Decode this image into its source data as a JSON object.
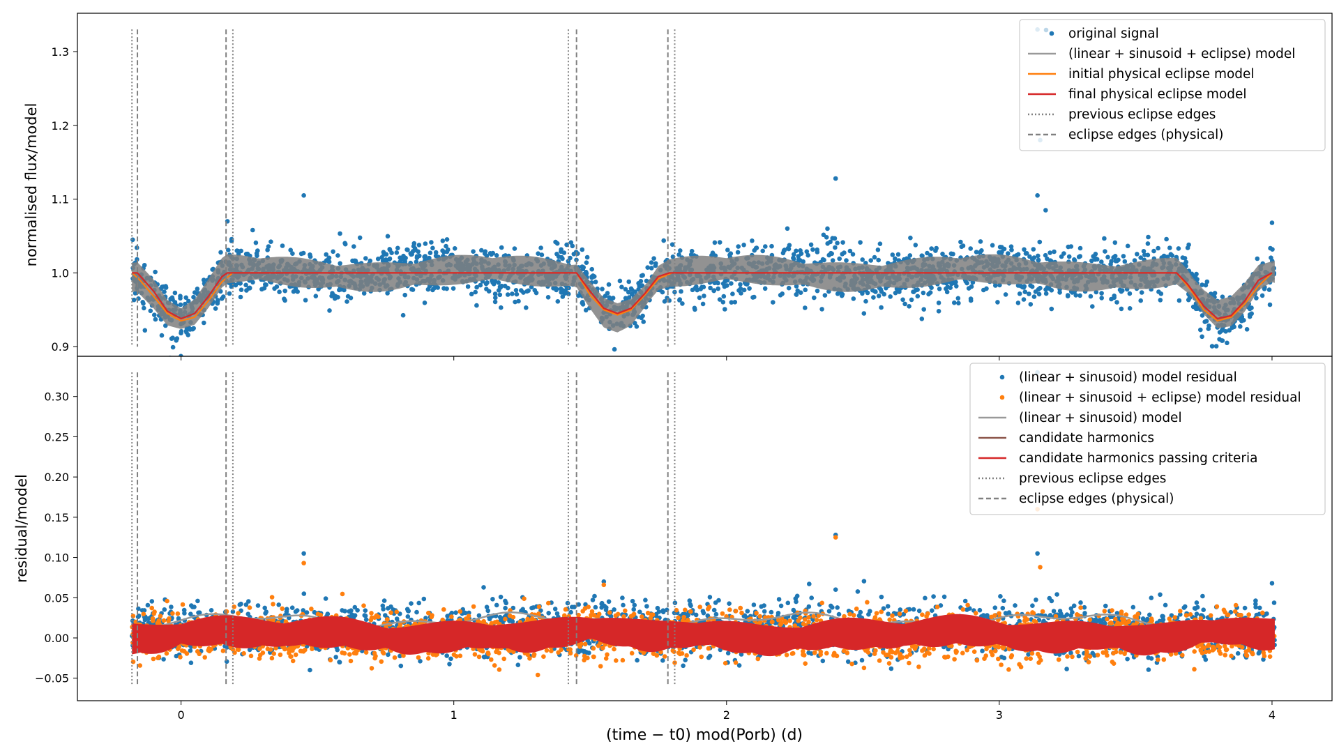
{
  "chart_data": [
    {
      "type": "scatter",
      "panel": "top",
      "ylabel": "normalised flux/model",
      "xlim": [
        -0.38,
        4.22
      ],
      "ylim": [
        0.887,
        1.352
      ],
      "x_ticks": [
        0,
        1,
        2,
        3,
        4
      ],
      "y_ticks": [
        0.9,
        1.0,
        1.1,
        1.2,
        1.3
      ],
      "y_tick_labels": [
        "0.9",
        "1.0",
        "1.1",
        "1.2",
        "1.3"
      ],
      "grid": false,
      "legend_placement": "top-right",
      "legend": [
        {
          "label": "original signal",
          "kind": "dot",
          "color": "#1f77b4"
        },
        {
          "label": "(linear + sinusoid + eclipse) model",
          "kind": "solid",
          "color": "#999999"
        },
        {
          "label": "initial physical eclipse model",
          "kind": "solid",
          "color": "#ff7f0e"
        },
        {
          "label": "final physical eclipse model",
          "kind": "solid",
          "color": "#d62728"
        },
        {
          "label": "previous eclipse edges",
          "kind": "dotted",
          "color": "#808080"
        },
        {
          "label": "eclipse edges (physical)",
          "kind": "dashed",
          "color": "#808080"
        }
      ],
      "vlines_previous": [
        -0.18,
        0.19,
        1.42,
        1.81
      ],
      "vlines_physical": [
        -0.16,
        0.165,
        1.45,
        1.785
      ],
      "final_model": {
        "x": [
          -0.18,
          -0.16,
          -0.1,
          -0.05,
          0.0,
          0.05,
          0.1,
          0.15,
          0.17,
          1.45,
          1.5,
          1.55,
          1.6,
          1.65,
          1.7,
          1.75,
          1.79,
          3.65,
          3.69,
          3.75,
          3.8,
          3.85,
          3.9,
          3.95,
          4.0
        ],
        "y": [
          1.0,
          1.0,
          0.975,
          0.948,
          0.938,
          0.945,
          0.968,
          0.995,
          1.0,
          1.0,
          0.975,
          0.952,
          0.945,
          0.952,
          0.972,
          0.995,
          1.0,
          1.0,
          0.985,
          0.955,
          0.938,
          0.942,
          0.962,
          0.99,
          1.0
        ]
      },
      "initial_model": {
        "x": [
          -0.18,
          -0.15,
          -0.1,
          -0.05,
          0.0,
          0.05,
          0.1,
          0.15,
          0.19,
          1.45,
          1.5,
          1.55,
          1.6,
          1.65,
          1.7,
          1.75,
          1.8,
          3.65,
          3.7,
          3.75,
          3.8,
          3.85,
          3.9,
          3.95,
          4.0
        ],
        "y": [
          1.0,
          0.99,
          0.968,
          0.945,
          0.935,
          0.94,
          0.962,
          0.988,
          1.0,
          1.0,
          0.97,
          0.95,
          0.943,
          0.95,
          0.97,
          0.992,
          1.0,
          1.0,
          0.978,
          0.95,
          0.935,
          0.94,
          0.958,
          0.982,
          1.0
        ]
      },
      "outliers": [
        {
          "x": 0.45,
          "y": 1.105
        },
        {
          "x": 2.4,
          "y": 1.128
        },
        {
          "x": 3.14,
          "y": 1.33
        },
        {
          "x": 3.15,
          "y": 1.18
        },
        {
          "x": 3.14,
          "y": 1.105
        },
        {
          "x": 3.17,
          "y": 1.085
        },
        {
          "x": 2.37,
          "y": 1.06
        },
        {
          "x": 4.0,
          "y": 1.068
        },
        {
          "x": 0.17,
          "y": 1.07
        }
      ],
      "scatter_note_noise_sd": 0.018
    },
    {
      "type": "scatter",
      "panel": "bottom",
      "xlabel": "(time − t0) mod(Porb) (d)",
      "ylabel": "residual/model",
      "xlim": [
        -0.38,
        4.22
      ],
      "ylim": [
        -0.078,
        0.35
      ],
      "x_ticks": [
        0,
        1,
        2,
        3,
        4
      ],
      "x_tick_labels": [
        "0",
        "1",
        "2",
        "3",
        "4"
      ],
      "y_ticks": [
        -0.05,
        0.0,
        0.05,
        0.1,
        0.15,
        0.2,
        0.25,
        0.3
      ],
      "y_tick_labels": [
        "−0.05",
        "0.00",
        "0.05",
        "0.10",
        "0.15",
        "0.20",
        "0.25",
        "0.30"
      ],
      "grid": false,
      "legend_placement": "top-right",
      "legend": [
        {
          "label": "(linear + sinusoid) model residual",
          "kind": "dot",
          "color": "#1f77b4"
        },
        {
          "label": "(linear + sinusoid + eclipse) model residual",
          "kind": "dot",
          "color": "#ff7f0e"
        },
        {
          "label": "(linear + sinusoid) model",
          "kind": "solid",
          "color": "#999999"
        },
        {
          "label": "candidate harmonics",
          "kind": "solid",
          "color": "#8c564b"
        },
        {
          "label": "candidate harmonics passing criteria",
          "kind": "solid",
          "color": "#d62728"
        },
        {
          "label": "previous eclipse edges",
          "kind": "dotted",
          "color": "#808080"
        },
        {
          "label": "eclipse edges (physical)",
          "kind": "dashed",
          "color": "#808080"
        }
      ],
      "vlines_previous": [
        -0.18,
        0.19,
        1.42,
        1.81
      ],
      "vlines_physical": [
        -0.16,
        0.165,
        1.45,
        1.785
      ],
      "outliers": [
        {
          "x": 0.45,
          "y": 0.105,
          "series": 0
        },
        {
          "x": 0.45,
          "y": 0.093,
          "series": 1
        },
        {
          "x": 2.4,
          "y": 0.128,
          "series": 0
        },
        {
          "x": 2.4,
          "y": 0.125,
          "series": 1
        },
        {
          "x": 3.14,
          "y": 0.33,
          "series": 0
        },
        {
          "x": 3.14,
          "y": 0.16,
          "series": 1
        },
        {
          "x": 3.14,
          "y": 0.105,
          "series": 0
        },
        {
          "x": 3.15,
          "y": 0.088,
          "series": 1
        },
        {
          "x": 1.55,
          "y": 0.07,
          "series": 0
        },
        {
          "x": 1.55,
          "y": 0.066,
          "series": 1
        },
        {
          "x": 4.0,
          "y": 0.068,
          "series": 0
        },
        {
          "x": 2.4,
          "y": 0.06,
          "series": 0
        }
      ],
      "scatter_note_noise_sd": 0.016
    }
  ],
  "colors": {
    "blue": "#1f77b4",
    "orange": "#ff7f0e",
    "red": "#d62728",
    "gray_model": "#808080",
    "brown": "#8c564b"
  }
}
